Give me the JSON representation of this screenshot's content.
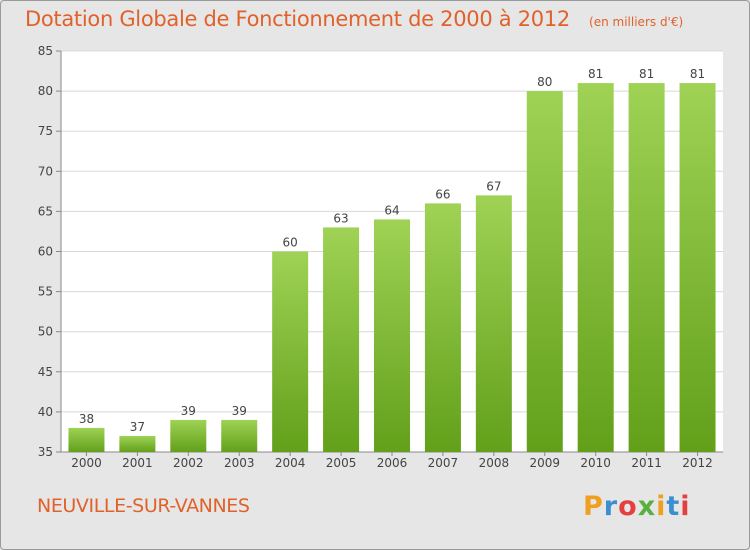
{
  "header": {
    "title": "Dotation Globale de Fonctionnement de 2000 à 2012",
    "unit": "(en milliers d'€)"
  },
  "footer": {
    "town": "NEUVILLE-SUR-VANNES",
    "brand": "Proxiti"
  },
  "colors": {
    "bar_top": "#9fd255",
    "bar_bottom": "#62a01a",
    "title": "#e0622a",
    "plot_background": "#ffffff",
    "gridline": "#d8d8d8"
  },
  "chart_data": {
    "type": "bar",
    "title": "Dotation Globale de Fonctionnement de 2000 à 2012",
    "subtitle": "(en milliers d'€)",
    "xlabel": "",
    "ylabel": "",
    "categories": [
      "2000",
      "2001",
      "2002",
      "2003",
      "2004",
      "2005",
      "2006",
      "2007",
      "2008",
      "2009",
      "2010",
      "2011",
      "2012"
    ],
    "values": [
      38,
      37,
      39,
      39,
      60,
      63,
      64,
      66,
      67,
      80,
      81,
      81,
      81
    ],
    "ylim": [
      35,
      85
    ],
    "yticks": [
      35,
      40,
      45,
      50,
      55,
      60,
      65,
      70,
      75,
      80,
      85
    ],
    "grid": true,
    "data_labels": true,
    "legend": "none"
  }
}
